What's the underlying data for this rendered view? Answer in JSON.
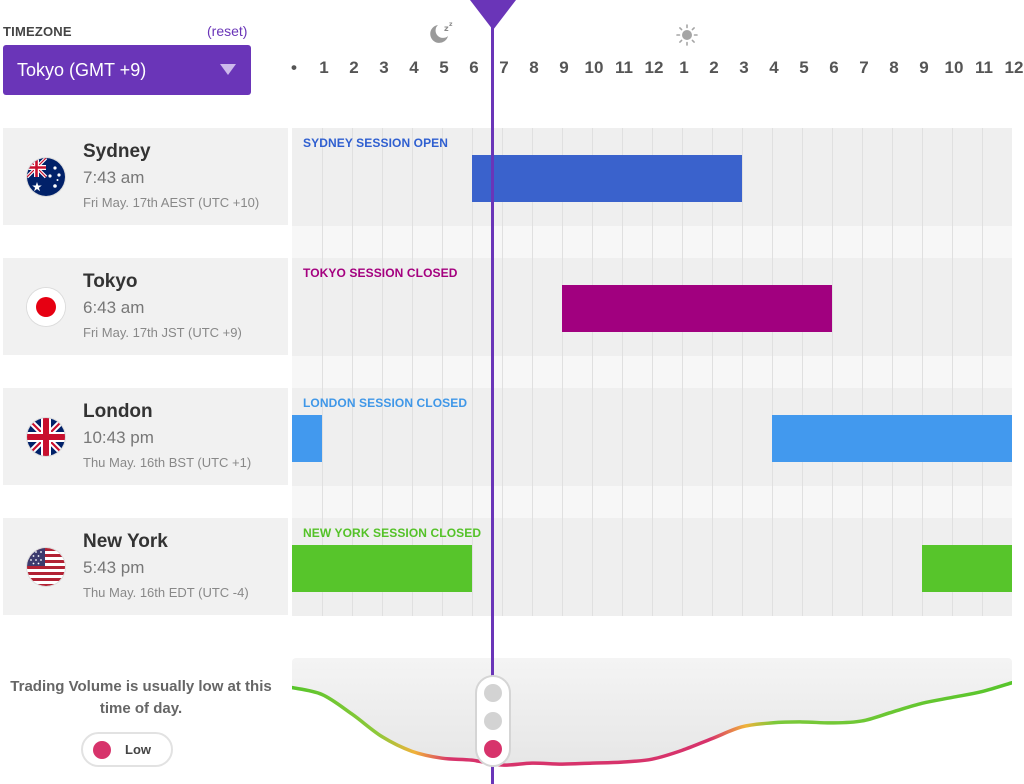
{
  "timezone": {
    "label": "TIMEZONE",
    "reset": "(reset)",
    "selected": "Tokyo (GMT +9)"
  },
  "timeline": {
    "hours": [
      "•",
      "1",
      "2",
      "3",
      "4",
      "5",
      "6",
      "7",
      "8",
      "9",
      "10",
      "11",
      "12",
      "1",
      "2",
      "3",
      "4",
      "5",
      "6",
      "7",
      "8",
      "9",
      "10",
      "11",
      "12"
    ],
    "current_hour": 7,
    "night_icon": "moon-icon",
    "day_icon": "sun-icon"
  },
  "markets": [
    {
      "city": "Sydney",
      "time": "7:43 am",
      "date": "Fri May. 17th AEST (UTC +10)",
      "flag": "australia-flag-icon",
      "status": "SYDNEY SESSION OPEN",
      "status_color": "#2f5fd0",
      "bar_color": "#3a62cc",
      "sessions": [
        [
          6,
          15
        ]
      ]
    },
    {
      "city": "Tokyo",
      "time": "6:43 am",
      "date": "Fri May. 17th JST (UTC +9)",
      "flag": "japan-flag-icon",
      "status": "TOKYO SESSION CLOSED",
      "status_color": "#a4007f",
      "bar_color": "#a1007f",
      "sessions": [
        [
          9,
          18
        ]
      ]
    },
    {
      "city": "London",
      "time": "10:43 pm",
      "date": "Thu May. 16th BST (UTC +1)",
      "flag": "uk-flag-icon",
      "status": "LONDON SESSION CLOSED",
      "status_color": "#3f97e8",
      "bar_color": "#4299ee",
      "sessions": [
        [
          0,
          1
        ],
        [
          16,
          24
        ]
      ]
    },
    {
      "city": "New York",
      "time": "5:43 pm",
      "date": "Thu May. 16th EDT (UTC -4)",
      "flag": "usa-flag-icon",
      "status": "NEW YORK SESSION CLOSED",
      "status_color": "#54c228",
      "bar_color": "#57c52b",
      "sessions": [
        [
          0,
          6
        ],
        [
          21,
          24
        ]
      ]
    }
  ],
  "volume": {
    "message": "Trading Volume is usually low at this time of day.",
    "level": "Low",
    "level_color": "#d7336b",
    "indicator": "traffic-light-icon",
    "curve": [
      [
        0,
        0.82
      ],
      [
        1,
        0.75
      ],
      [
        2,
        0.55
      ],
      [
        3,
        0.32
      ],
      [
        4,
        0.17
      ],
      [
        5,
        0.1
      ],
      [
        6,
        0.08
      ],
      [
        7,
        0.03
      ],
      [
        8,
        0.05
      ],
      [
        9,
        0.04
      ],
      [
        10,
        0.05
      ],
      [
        11,
        0.06
      ],
      [
        12,
        0.09
      ],
      [
        13,
        0.18
      ],
      [
        14,
        0.3
      ],
      [
        15,
        0.42
      ],
      [
        16,
        0.46
      ],
      [
        17,
        0.47
      ],
      [
        18,
        0.46
      ],
      [
        19,
        0.48
      ],
      [
        20,
        0.57
      ],
      [
        21,
        0.66
      ],
      [
        22,
        0.72
      ],
      [
        23,
        0.78
      ],
      [
        24,
        0.87
      ]
    ]
  }
}
